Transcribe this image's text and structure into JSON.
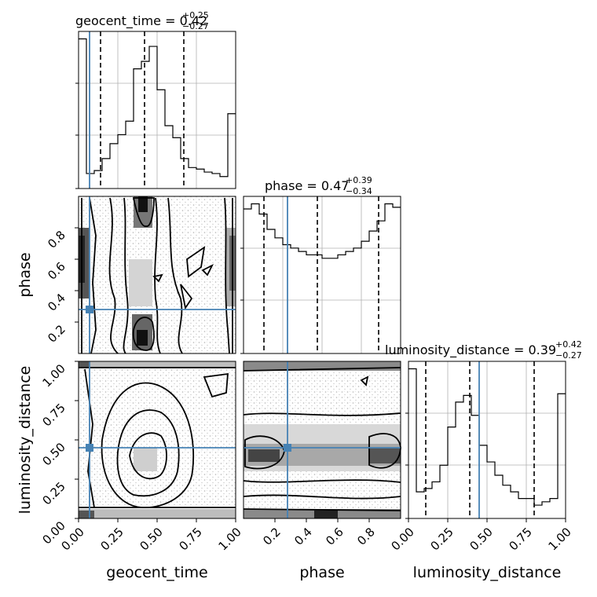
{
  "chart_data": {
    "type": "corner",
    "parameters": [
      {
        "name": "geocent_time",
        "label": "geocent_time",
        "range": [
          0.0,
          1.0
        ],
        "ticks": [
          "0.00",
          "0.25",
          "0.50",
          "0.75",
          "1.00"
        ],
        "median": 0.42,
        "q_low": 0.14,
        "q_high": 0.67,
        "truth": 0.07,
        "title_main": "geocent_time = 0.42",
        "title_plus": "+0.25",
        "title_minus": "−0.27",
        "hist_bins": [
          0.0,
          0.05,
          0.1,
          0.15,
          0.2,
          0.25,
          0.3,
          0.35,
          0.4,
          0.45,
          0.5,
          0.55,
          0.6,
          0.65,
          0.7,
          0.75,
          0.8,
          0.85,
          0.9,
          0.95,
          1.0
        ],
        "hist_values": [
          1.0,
          0.1,
          0.12,
          0.2,
          0.3,
          0.36,
          0.45,
          0.8,
          0.85,
          0.95,
          0.66,
          0.42,
          0.34,
          0.2,
          0.14,
          0.13,
          0.11,
          0.1,
          0.08,
          0.5
        ]
      },
      {
        "name": "phase",
        "label": "phase",
        "range": [
          0.0,
          1.0
        ],
        "ticks": [
          "0.2",
          "0.4",
          "0.6",
          "0.8"
        ],
        "tick_values": [
          0.2,
          0.4,
          0.6,
          0.8
        ],
        "median": 0.47,
        "q_low": 0.13,
        "q_high": 0.86,
        "truth": 0.28,
        "title_main": "phase = 0.47",
        "title_plus": "+0.39",
        "title_minus": "−0.34",
        "hist_bins": [
          0.0,
          0.05,
          0.1,
          0.15,
          0.2,
          0.25,
          0.3,
          0.35,
          0.4,
          0.45,
          0.5,
          0.55,
          0.6,
          0.65,
          0.7,
          0.75,
          0.8,
          0.85,
          0.9,
          0.95,
          1.0
        ],
        "hist_values": [
          0.85,
          0.88,
          0.82,
          0.73,
          0.68,
          0.64,
          0.62,
          0.6,
          0.58,
          0.58,
          0.56,
          0.56,
          0.58,
          0.6,
          0.62,
          0.66,
          0.72,
          0.78,
          0.88,
          0.86
        ]
      },
      {
        "name": "luminosity_distance",
        "label": "luminosity_distance",
        "range": [
          0.0,
          1.0
        ],
        "ticks": [
          "0.00",
          "0.25",
          "0.50",
          "0.75",
          "1.00"
        ],
        "median": 0.39,
        "q_low": 0.11,
        "q_high": 0.8,
        "truth": 0.45,
        "title_main": "luminosity_distance = 0.39",
        "title_plus": "+0.42",
        "title_minus": "−0.27",
        "hist_bins": [
          0.0,
          0.05,
          0.1,
          0.15,
          0.2,
          0.25,
          0.3,
          0.35,
          0.4,
          0.45,
          0.5,
          0.55,
          0.6,
          0.65,
          0.7,
          0.75,
          0.8,
          0.85,
          0.9,
          0.95,
          1.0
        ],
        "hist_values": [
          0.9,
          0.16,
          0.18,
          0.22,
          0.32,
          0.55,
          0.7,
          0.74,
          0.62,
          0.44,
          0.34,
          0.26,
          0.2,
          0.16,
          0.12,
          0.12,
          0.08,
          0.1,
          0.12,
          0.75
        ]
      }
    ],
    "truth_color": "#4682b4",
    "grid": true
  }
}
